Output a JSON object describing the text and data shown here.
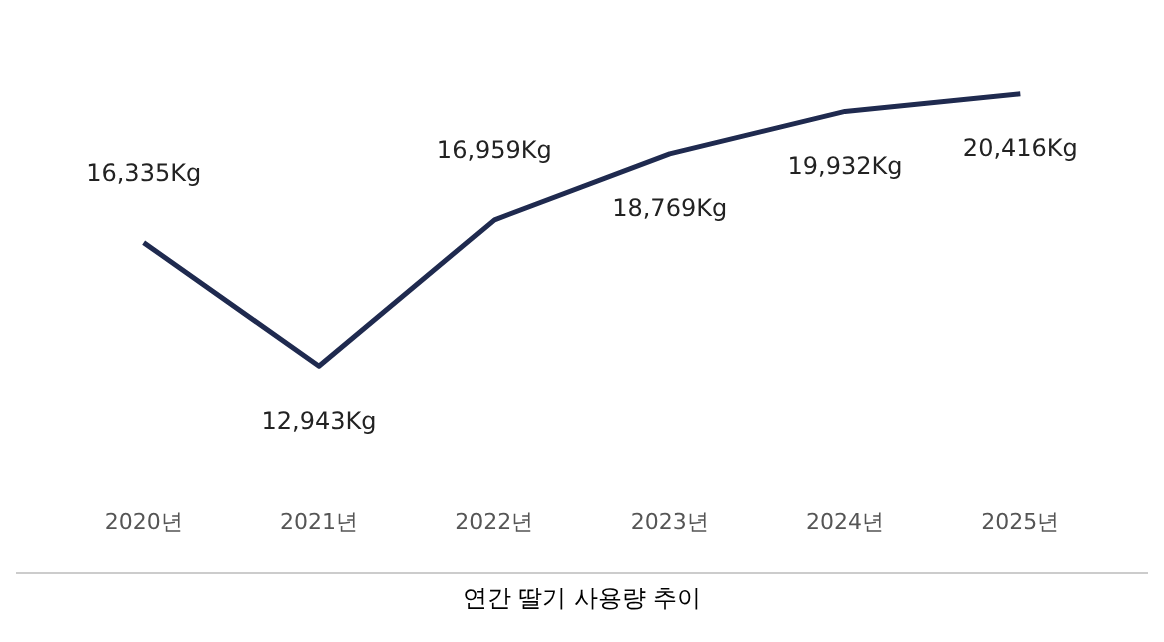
{
  "chart_data": {
    "type": "line",
    "title": "연간 딸기 사용량 추이",
    "categories": [
      "2020년",
      "2021년",
      "2022년",
      "2023년",
      "2024년",
      "2025년"
    ],
    "series": [
      {
        "color": "#1f2a4f",
        "values": [
          16335,
          12943,
          16959,
          18769,
          19932,
          20416
        ],
        "value_labels": [
          "16,335Kg",
          "12,943Kg",
          "16,959Kg",
          "18,769Kg",
          "19,932Kg",
          "20,416Kg"
        ]
      }
    ],
    "grid": false,
    "legend": false,
    "marker": "none",
    "line_style": "solid",
    "tick_labels": "x"
  }
}
